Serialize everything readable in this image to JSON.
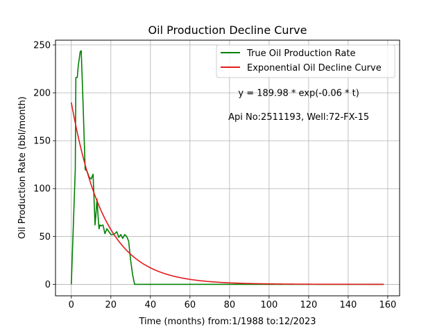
{
  "chart_data": {
    "type": "line",
    "title": "Oil Production Decline Curve",
    "xlabel": "Time (months) from:1/1988 to:12/2023",
    "ylabel": "Oil Production Rate (bbl/month)",
    "xlim": [
      -8,
      166
    ],
    "ylim": [
      -12,
      255
    ],
    "xticks": [
      0,
      20,
      40,
      60,
      80,
      100,
      120,
      140,
      160
    ],
    "yticks": [
      0,
      50,
      100,
      150,
      200,
      250
    ],
    "grid": true,
    "legend_position": "top-right",
    "series": [
      {
        "name": "True Oil Production Rate",
        "color": "#008000",
        "x": [
          0,
          2,
          2.3,
          3,
          3.5,
          4.5,
          5,
          6,
          7,
          8,
          9,
          10,
          11,
          12,
          12.5,
          13,
          13.5,
          14,
          14.5,
          15,
          16,
          17,
          18,
          19,
          20,
          21,
          22,
          23,
          24,
          25,
          26,
          27,
          28,
          29,
          30,
          31,
          32,
          40,
          60,
          80,
          100,
          120,
          140,
          158
        ],
        "values": [
          0,
          120,
          216,
          216,
          228,
          243,
          244,
          185,
          120,
          118,
          112,
          110,
          115,
          62,
          75,
          89,
          72,
          58,
          62,
          61,
          62,
          53,
          58,
          55,
          52,
          52,
          53,
          55,
          49,
          52,
          48,
          52,
          50,
          45,
          25,
          10,
          0,
          0,
          0,
          0,
          0,
          0,
          0,
          0
        ]
      },
      {
        "name": "Exponential Oil Decline Curve",
        "color": "#e31a1c",
        "function": "exponential",
        "a": 189.98,
        "b": -0.06,
        "x_range": [
          0,
          158
        ]
      }
    ],
    "annotations": [
      {
        "text": "y = 189.98 * exp(-0.06 * t)",
        "x": 115,
        "y": 200
      },
      {
        "text": "Api No:2511193, Well:72-FX-15",
        "x": 115,
        "y": 175
      }
    ]
  }
}
